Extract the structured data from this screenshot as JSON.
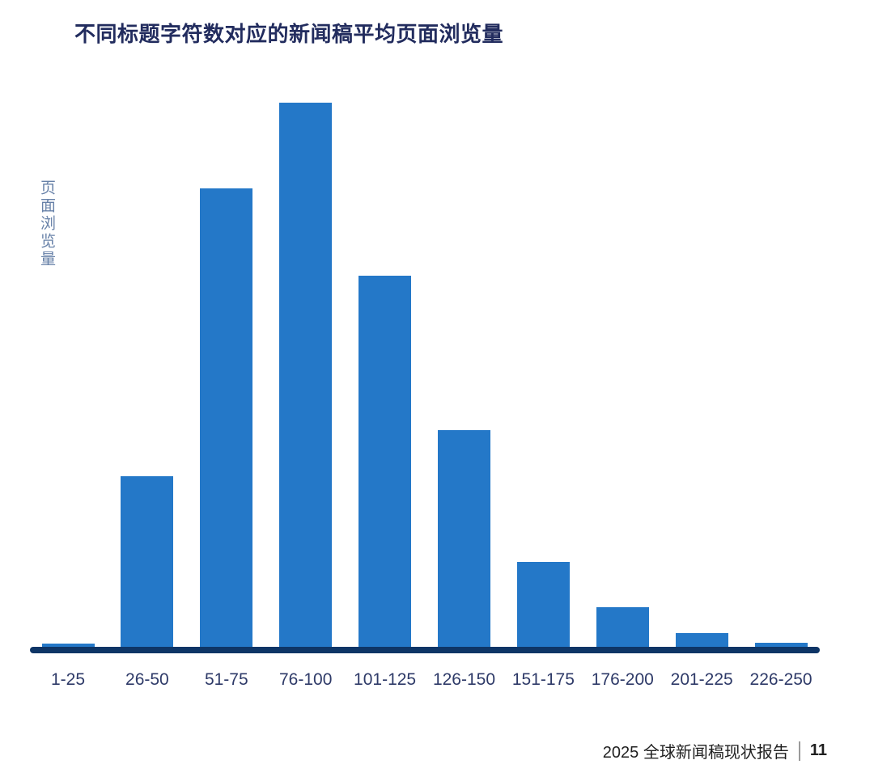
{
  "page": {
    "title": "不同标题字符数对应的新闻稿平均页面浏览量",
    "footer": {
      "report_name": "2025 全球新闻稿现状报告",
      "page_number": "11"
    }
  },
  "colors": {
    "bar": "#2478C8",
    "axis_line": "#0E3566",
    "title_text": "#222C5E",
    "tick_text": "#2E3A68",
    "y_label_text": "#6781A8",
    "footer_text": "#1F1F1F"
  },
  "chart_data": {
    "type": "bar",
    "title": "不同标题字符数对应的新闻稿平均页面浏览量",
    "categories": [
      "1-25",
      "26-50",
      "51-75",
      "76-100",
      "101-125",
      "126-150",
      "151-175",
      "176-200",
      "201-225",
      "226-250"
    ],
    "values": [
      0.7,
      31.5,
      84.3,
      100,
      68.2,
      39.9,
      15.7,
      7.4,
      2.7,
      0.9
    ],
    "value_note": "relative bar heights, tallest bar (76-100) = 100; no numeric y-axis scale is shown in the image",
    "xlabel": "",
    "ylabel": "页面浏览量",
    "ylim": [
      0,
      100
    ],
    "grid": false,
    "legend": false,
    "bar_color": "#2478C8"
  }
}
